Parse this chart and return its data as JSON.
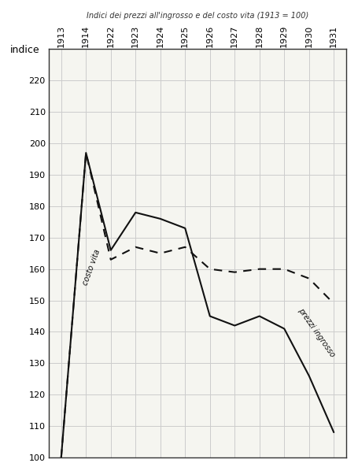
{
  "title": "Indici dei prezzi all'ingrosso e del costo vita (1913 = 100)",
  "years": [
    1913,
    1914,
    1922,
    1923,
    1924,
    1925,
    1926,
    1927,
    1928,
    1929,
    1930,
    1931
  ],
  "prezzi_ingrosso": [
    100,
    197,
    166,
    178,
    176,
    173,
    145,
    142,
    145,
    141,
    126,
    108
  ],
  "costo_vita": [
    100,
    197,
    163,
    167,
    165,
    167,
    160,
    159,
    160,
    160,
    157,
    149
  ],
  "ylabel": "indice",
  "ylim": [
    100,
    230
  ],
  "yticks": [
    100,
    110,
    120,
    130,
    140,
    150,
    160,
    170,
    180,
    190,
    200,
    210,
    220
  ],
  "label_costo_vita": "costo vita",
  "label_prezzi": "prezzi ingrosso",
  "bg_color": "#f5f5f0",
  "grid_color": "#cccccc",
  "line_color": "#111111"
}
